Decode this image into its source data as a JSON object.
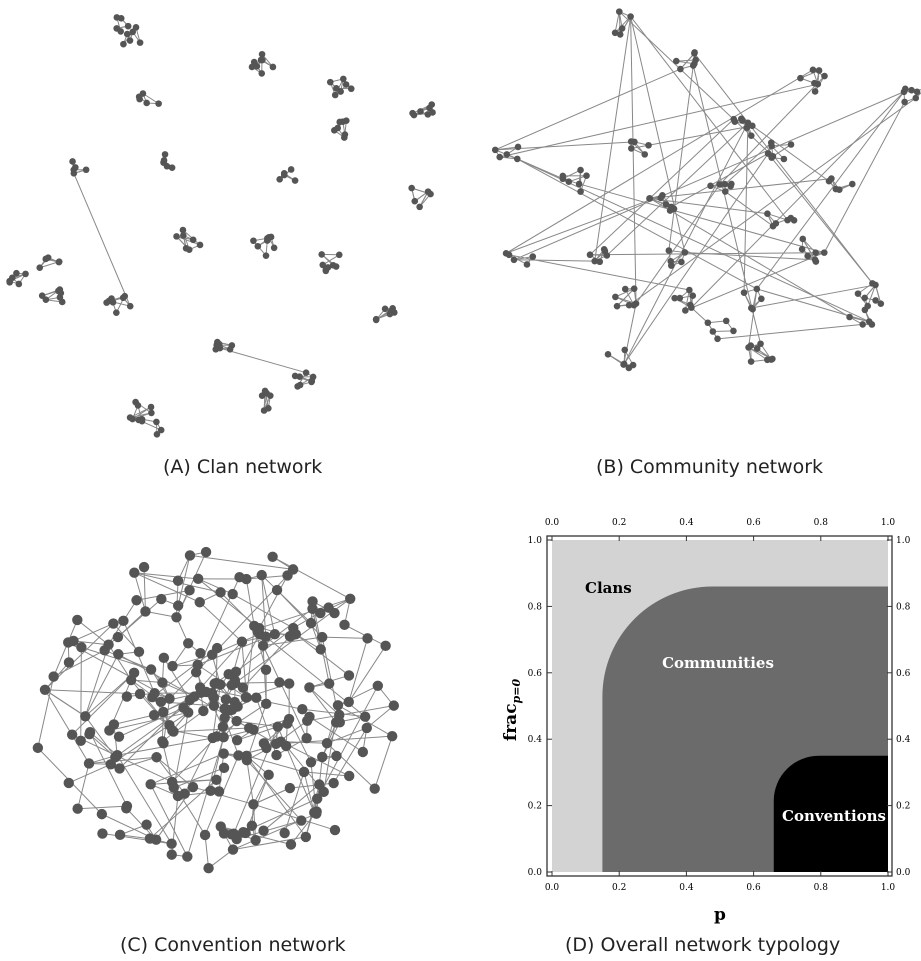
{
  "captions": {
    "a": "(A) Clan network",
    "b": "(B) Community network",
    "c": "(C) Convention network",
    "d": "(D) Overall network typology"
  },
  "colors": {
    "node": "#555555",
    "edge": "#888888",
    "clans_region": "#d3d3d3",
    "communities_region": "#6b6b6b",
    "conventions_region": "#000000"
  },
  "typology": {
    "xlabel": "p",
    "ylabel_main": "frac",
    "ylabel_sub": "p=0",
    "x_ticks": [
      "0.0",
      "0.2",
      "0.4",
      "0.6",
      "0.8",
      "1.0"
    ],
    "y_ticks": [
      "0.0",
      "0.2",
      "0.4",
      "0.6",
      "0.8",
      "1.0"
    ],
    "regions": [
      {
        "label": "Clans",
        "color": "#d3d3d3"
      },
      {
        "label": "Communities",
        "color": "#6b6b6b"
      },
      {
        "label": "Conventions",
        "color": "#000000"
      }
    ],
    "communities_region_p_from": 0.15,
    "communities_region_frac_to": 0.86,
    "conventions_region_p_from": 0.66,
    "conventions_region_frac_to": 0.35
  }
}
